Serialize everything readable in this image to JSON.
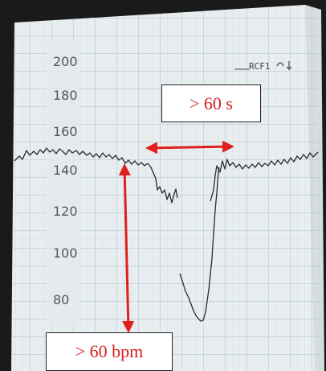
{
  "strip": {
    "scale_labels": [
      "200",
      "180",
      "160",
      "140",
      "120",
      "100",
      "80"
    ],
    "header_text": "RCF1"
  },
  "annotations": {
    "duration_label": "> 60 s",
    "depth_label": "> 60 bpm"
  },
  "colors": {
    "paper": "#e9eef0",
    "grid": "#a9c3cd",
    "trace": "#2a2a2a",
    "annotation": "#e0201c"
  }
}
